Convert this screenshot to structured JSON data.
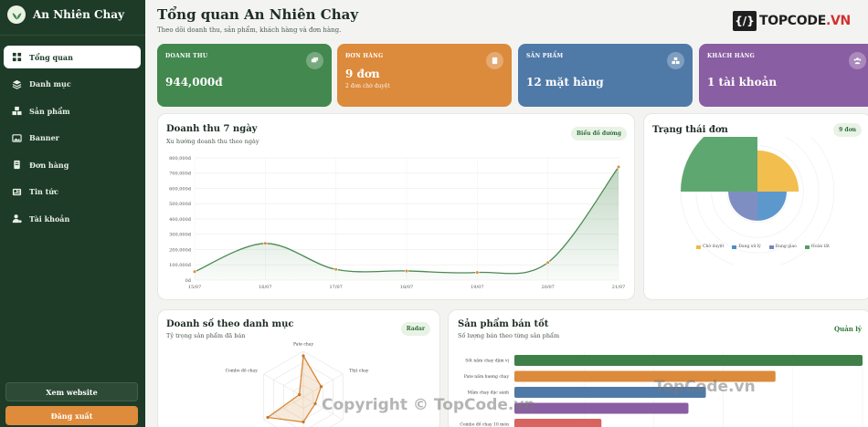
{
  "brand": {
    "name": "An Nhiên Chay",
    "logo_icon": "leaf-icon"
  },
  "nav": [
    {
      "label": "Tổng quan",
      "icon": "dashboard-icon",
      "active": true
    },
    {
      "label": "Danh mục",
      "icon": "layers-icon",
      "active": false
    },
    {
      "label": "Sản phẩm",
      "icon": "boxes-icon",
      "active": false
    },
    {
      "label": "Banner",
      "icon": "image-icon",
      "active": false
    },
    {
      "label": "Đơn hàng",
      "icon": "receipt-icon",
      "active": false
    },
    {
      "label": "Tin tức",
      "icon": "newspaper-icon",
      "active": false
    },
    {
      "label": "Tài khoản",
      "icon": "user-gear-icon",
      "active": false
    }
  ],
  "sidebar_buttons": {
    "website": "Xem website",
    "logout": "Đăng xuất"
  },
  "header": {
    "title": "Tổng quan An Nhiên Chay",
    "subtitle": "Theo dõi doanh thu, sản phẩm, khách hàng và đơn hàng.",
    "logo_mark": "{/}",
    "logo_text_1": "TOPCODE",
    "logo_text_2": ".VN"
  },
  "stats": {
    "revenue": {
      "label": "DOANH THU",
      "value": "944,000đ",
      "icon": "money-icon",
      "color": "#43884e"
    },
    "orders": {
      "label": "ĐƠN HÀNG",
      "value": "9 đơn",
      "sub": "2 đơn chờ duyệt",
      "icon": "clipboard-icon",
      "color": "#dc8a3b"
    },
    "products": {
      "label": "SẢN PHẨM",
      "value": "12 mặt hàng",
      "icon": "boxes-icon",
      "color": "#4f79a7"
    },
    "customers": {
      "label": "KHÁCH HÀNG",
      "value": "1 tài khoản",
      "icon": "users-icon",
      "color": "#8a5ea2"
    }
  },
  "revenue_chart": {
    "title": "Doanh thu 7 ngày",
    "subtitle": "Xu hướng doanh thu theo ngày",
    "chip": "Biểu đồ đường"
  },
  "status_chart": {
    "title": "Trạng thái đơn",
    "chip": "9 đơn"
  },
  "category_chart": {
    "title": "Doanh số theo danh mục",
    "subtitle": "Tỷ trọng sản phẩm đã bán",
    "chip": "Radar"
  },
  "top_products": {
    "title": "Sản phẩm bán tốt",
    "subtitle": "Số lượng bán theo từng sản phẩm",
    "link": "Quản lý"
  },
  "watermarks": {
    "w1": "TopCode.vn",
    "w2": "Copyright © TopCode.vn"
  },
  "chart_data": [
    {
      "type": "line",
      "x": [
        "15/07",
        "16/07",
        "17/07",
        "18/07",
        "19/07",
        "20/07",
        "21/07"
      ],
      "series": [
        {
          "values": [
            55000,
            240000,
            70000,
            60000,
            50000,
            115000,
            740000
          ]
        }
      ],
      "y_ticks": [
        "0đ",
        "100,000đ",
        "200,000đ",
        "300,000đ",
        "400,000đ",
        "500,000đ",
        "600,000đ",
        "700,000đ",
        "800,000đ"
      ],
      "ylim": [
        0,
        800000
      ],
      "color": "#4a8a52",
      "grid": true
    },
    {
      "type": "polar-area",
      "categories": [
        "Chờ duyệt",
        "Đang xử lý",
        "Đang giao",
        "Hoàn tất"
      ],
      "values": [
        2,
        1,
        1,
        5
      ],
      "colors": [
        "#f1b93f",
        "#4f8fc9",
        "#7484bd",
        "#51a064"
      ],
      "legend": "bottom"
    },
    {
      "type": "radar",
      "categories": [
        "Pate chay",
        "Thịt chay",
        "",
        "",
        "",
        "Combo đồ chay"
      ],
      "values": [
        90,
        45,
        30,
        55,
        90,
        10
      ],
      "color": "#d9883a"
    },
    {
      "type": "bar",
      "orientation": "horizontal",
      "categories": [
        "Sốt nấm chay đậm vị",
        "Pate nấm hương chay",
        "Mắm chay đặc sánh",
        "",
        "Combo đồ chay 10 món"
      ],
      "values": [
        100,
        75,
        55,
        50,
        25
      ],
      "colors": [
        "#3f7f48",
        "#dc8a3b",
        "#4f79a7",
        "#8a5ea2",
        "#d9635e"
      ]
    }
  ]
}
